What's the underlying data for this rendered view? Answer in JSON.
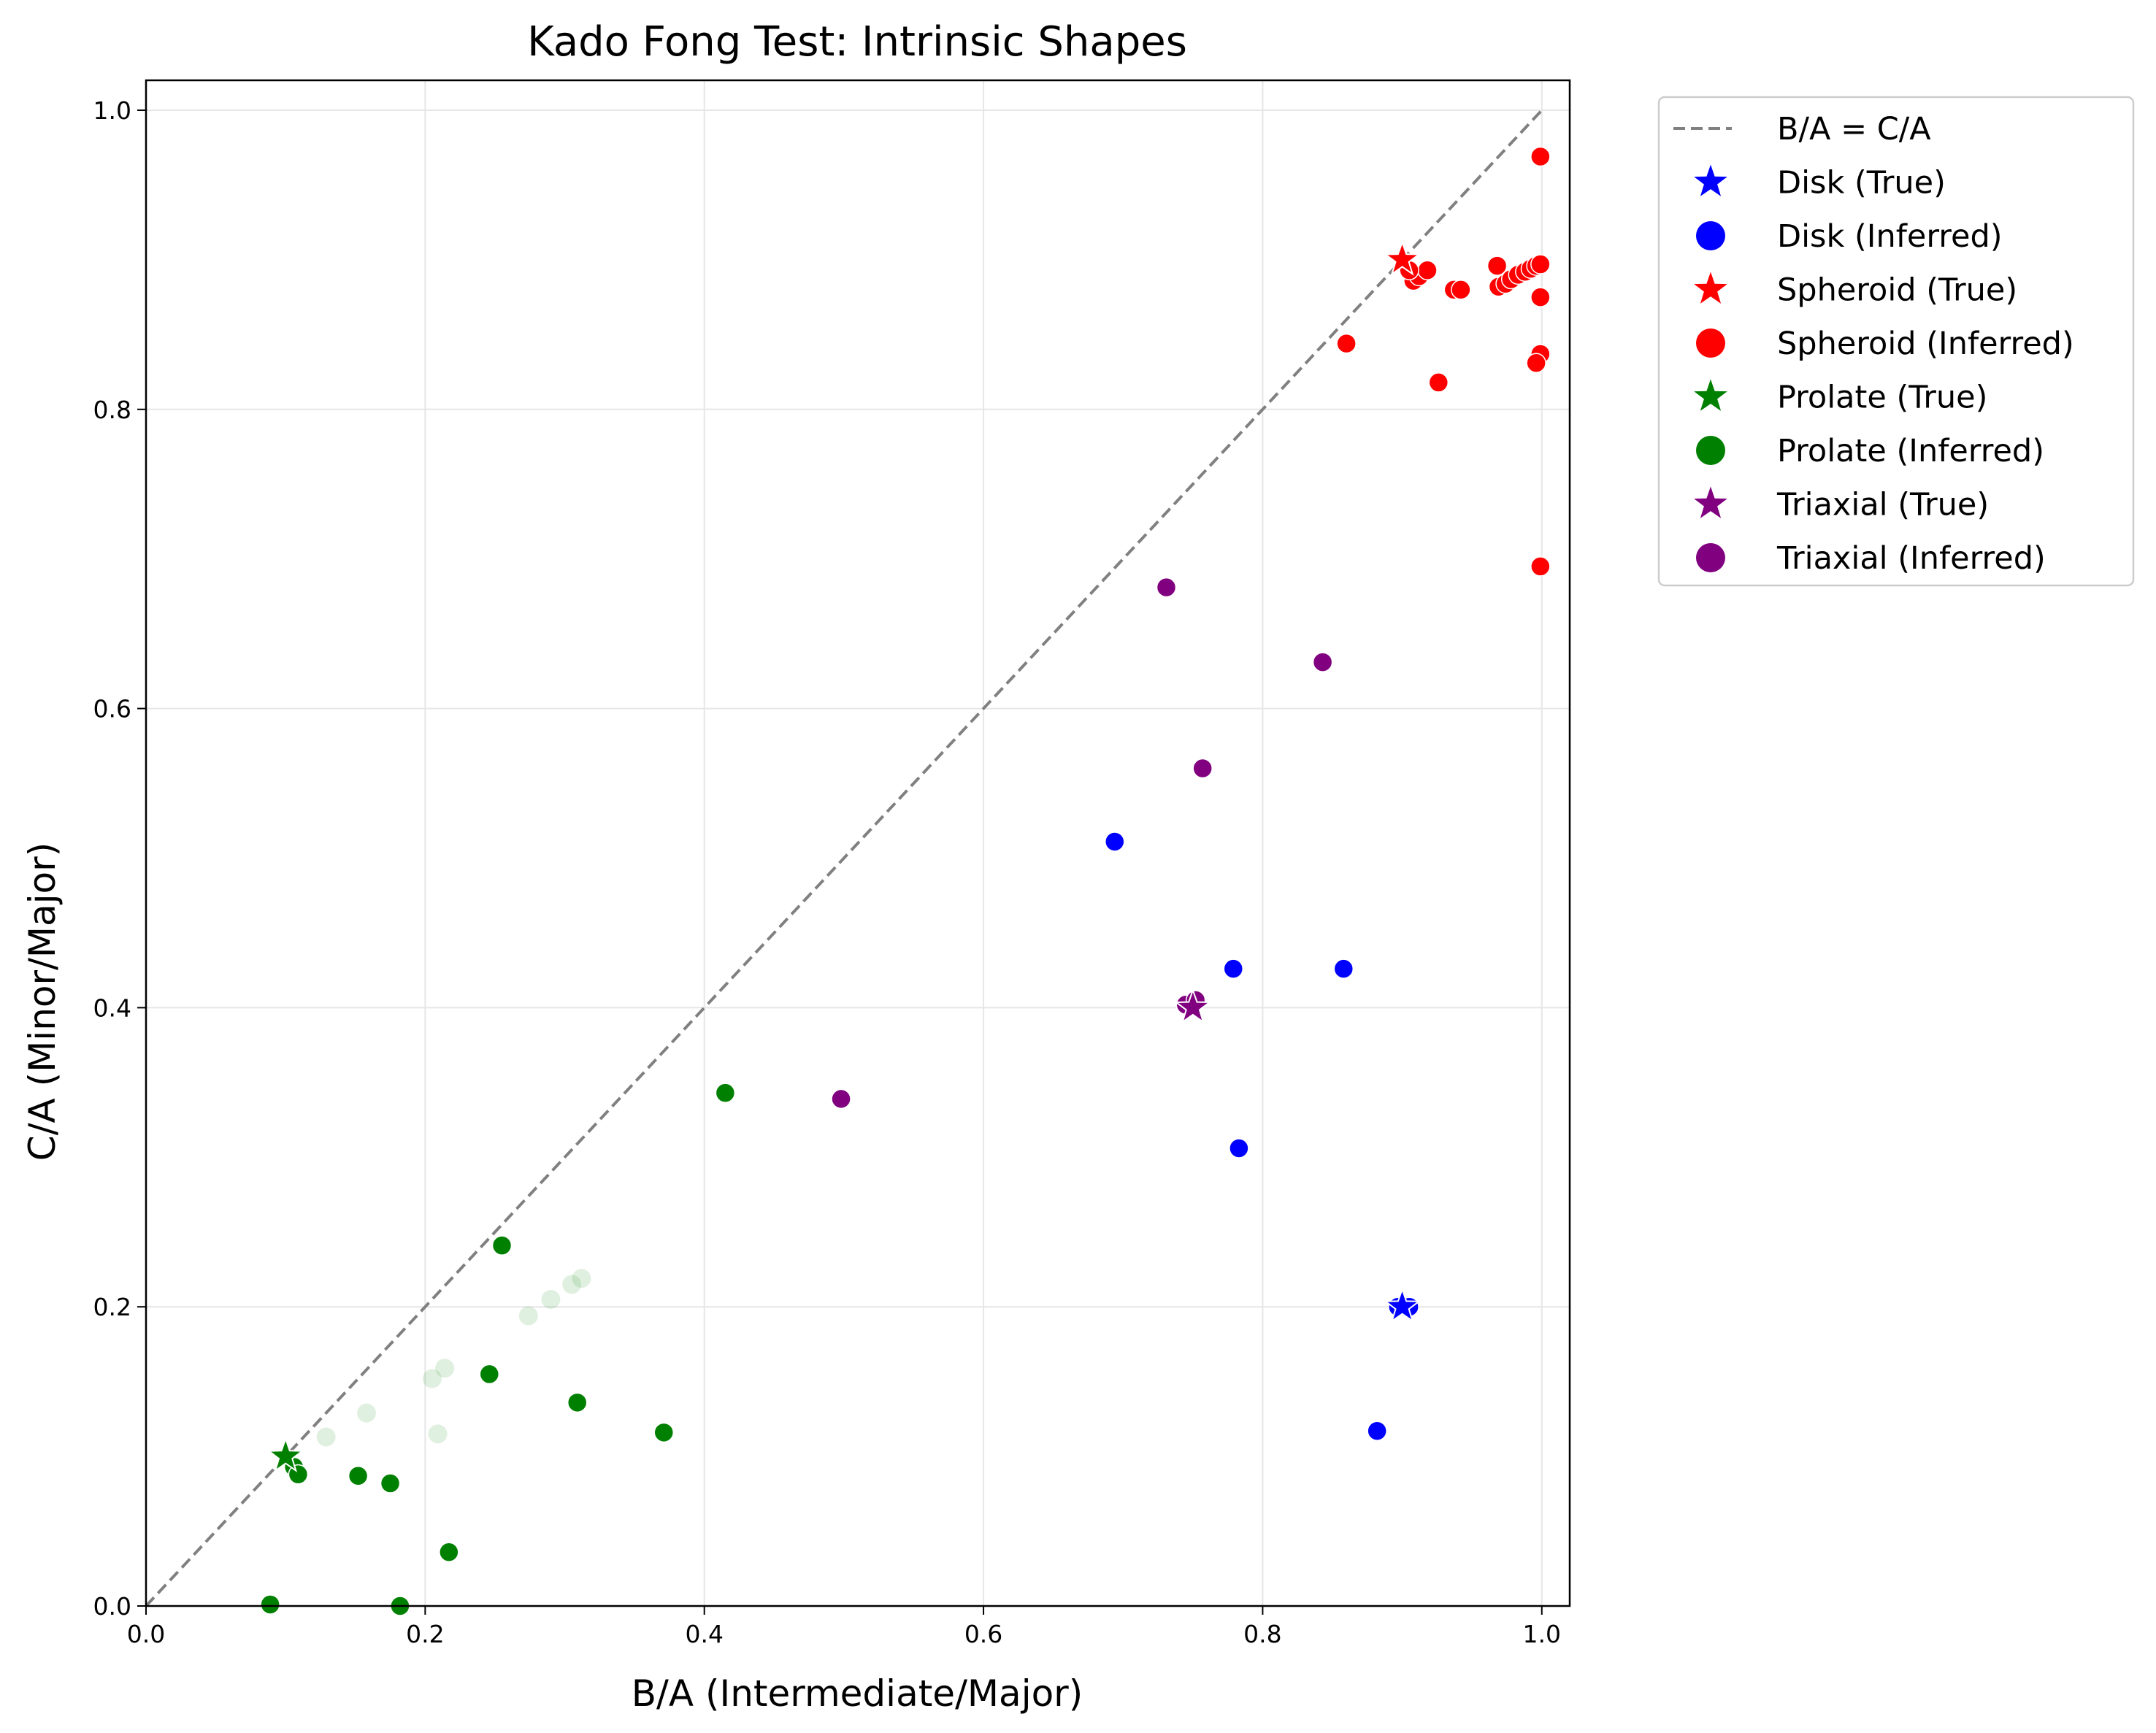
{
  "chart_data": {
    "type": "scatter",
    "title": "Kado Fong Test: Intrinsic Shapes",
    "xlabel": "B/A (Intermediate/Major)",
    "ylabel": "C/A (Minor/Major)",
    "xlim": [
      0,
      1.02
    ],
    "ylim": [
      0,
      1.02
    ],
    "xticks": [
      "0.0",
      "0.2",
      "0.4",
      "0.6",
      "0.8",
      "1.0"
    ],
    "yticks": [
      "0.0",
      "0.2",
      "0.4",
      "0.6",
      "0.8",
      "1.0"
    ],
    "grid": true,
    "legend_position": "outside-top-right",
    "reference_line": {
      "name": "B/A = C/A",
      "color": "#808080",
      "style": "dashed",
      "from": [
        0,
        0
      ],
      "to": [
        1,
        1
      ]
    },
    "series": [
      {
        "name": "Disk (True)",
        "marker": "star",
        "color": "#0000ff",
        "points": [
          [
            0.9,
            0.2
          ]
        ]
      },
      {
        "name": "Disk (Inferred)",
        "marker": "circle",
        "color": "#0000ff",
        "points": [
          [
            0.694,
            0.511
          ],
          [
            0.779,
            0.426
          ],
          [
            0.858,
            0.426
          ],
          [
            0.783,
            0.306
          ],
          [
            0.882,
            0.117
          ],
          [
            0.9,
            0.2
          ],
          [
            0.897,
            0.2
          ],
          [
            0.905,
            0.2
          ]
        ]
      },
      {
        "name": "Spheroid (True)",
        "marker": "star",
        "color": "#ff0000",
        "points": [
          [
            0.9,
            0.9
          ]
        ]
      },
      {
        "name": "Spheroid (Inferred)",
        "marker": "circle",
        "color": "#ff0000",
        "points": [
          [
            0.908,
            0.886
          ],
          [
            0.912,
            0.889
          ],
          [
            0.918,
            0.893
          ],
          [
            0.905,
            0.893
          ],
          [
            0.937,
            0.88
          ],
          [
            0.942,
            0.88
          ],
          [
            0.968,
            0.896
          ],
          [
            0.969,
            0.882
          ],
          [
            0.974,
            0.884
          ],
          [
            0.978,
            0.887
          ],
          [
            0.983,
            0.89
          ],
          [
            0.988,
            0.892
          ],
          [
            0.992,
            0.894
          ],
          [
            0.996,
            0.896
          ],
          [
            0.999,
            0.897
          ],
          [
            0.999,
            0.969
          ],
          [
            0.999,
            0.875
          ],
          [
            0.999,
            0.837
          ],
          [
            0.996,
            0.831
          ],
          [
            0.86,
            0.844
          ],
          [
            0.926,
            0.818
          ],
          [
            0.999,
            0.695
          ]
        ]
      },
      {
        "name": "Prolate (True)",
        "marker": "star",
        "color": "#008000",
        "points": [
          [
            0.1,
            0.1
          ]
        ]
      },
      {
        "name": "Prolate (Inferred)",
        "marker": "circle",
        "color": "#008000",
        "points": [
          [
            0.415,
            0.343
          ],
          [
            0.255,
            0.241
          ],
          [
            0.246,
            0.155
          ],
          [
            0.309,
            0.136
          ],
          [
            0.371,
            0.116
          ],
          [
            0.106,
            0.093
          ],
          [
            0.109,
            0.088
          ],
          [
            0.152,
            0.087
          ],
          [
            0.175,
            0.082
          ],
          [
            0.217,
            0.036
          ],
          [
            0.089,
            0.001
          ],
          [
            0.182,
            0.0
          ]
        ]
      },
      {
        "name": "Prolate (Inferred, faint)",
        "marker": "circle",
        "color": "#008000",
        "faint": true,
        "points": [
          [
            0.209,
            0.115
          ],
          [
            0.305,
            0.215
          ],
          [
            0.312,
            0.219
          ],
          [
            0.29,
            0.205
          ],
          [
            0.274,
            0.194
          ],
          [
            0.214,
            0.159
          ],
          [
            0.158,
            0.129
          ],
          [
            0.129,
            0.113
          ],
          [
            0.205,
            0.152
          ]
        ]
      },
      {
        "name": "Triaxial (True)",
        "marker": "star",
        "color": "#800080",
        "points": [
          [
            0.75,
            0.4
          ]
        ]
      },
      {
        "name": "Triaxial (Inferred)",
        "marker": "circle",
        "color": "#800080",
        "points": [
          [
            0.731,
            0.681
          ],
          [
            0.843,
            0.631
          ],
          [
            0.757,
            0.56
          ],
          [
            0.498,
            0.339
          ],
          [
            0.745,
            0.402
          ],
          [
            0.752,
            0.405
          ]
        ]
      }
    ]
  },
  "legend": {
    "items": [
      {
        "label": "B/A = C/A",
        "kind": "line",
        "color": "#808080"
      },
      {
        "label": "Disk (True)",
        "kind": "star",
        "color": "#0000ff"
      },
      {
        "label": "Disk (Inferred)",
        "kind": "circle",
        "color": "#0000ff"
      },
      {
        "label": "Spheroid (True)",
        "kind": "star",
        "color": "#ff0000"
      },
      {
        "label": "Spheroid (Inferred)",
        "kind": "circle",
        "color": "#ff0000"
      },
      {
        "label": "Prolate (True)",
        "kind": "star",
        "color": "#008000"
      },
      {
        "label": "Prolate (Inferred)",
        "kind": "circle",
        "color": "#008000"
      },
      {
        "label": "Triaxial (True)",
        "kind": "star",
        "color": "#800080"
      },
      {
        "label": "Triaxial (Inferred)",
        "kind": "circle",
        "color": "#800080"
      }
    ]
  }
}
